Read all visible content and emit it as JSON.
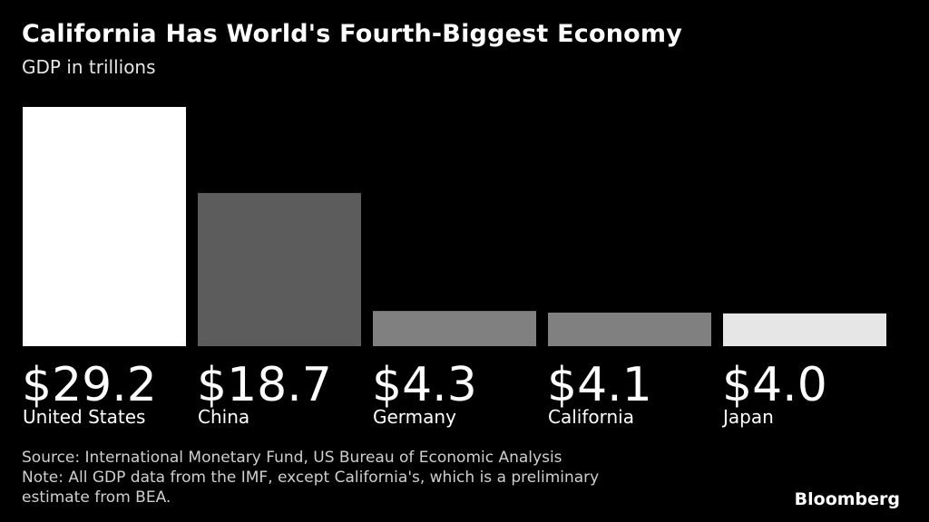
{
  "chart_data": {
    "type": "bar",
    "title": "California Has World's Fourth-Biggest Economy",
    "subtitle": "GDP in trillions",
    "categories": [
      "United States",
      "China",
      "Germany",
      "California",
      "Japan"
    ],
    "values": [
      29.2,
      18.7,
      4.3,
      4.1,
      4.0
    ],
    "value_labels": [
      "$29.2",
      "$18.7",
      "$4.3",
      "$4.1",
      "$4.0"
    ],
    "bar_colors": [
      "#ffffff",
      "#5c5c5c",
      "#808080",
      "#808080",
      "#e6e6e6"
    ],
    "ylim": [
      0,
      29.2
    ],
    "grid": false,
    "legend": "none"
  },
  "footnotes": {
    "source": "Source: International Monetary Fund, US Bureau of Economic Analysis",
    "note_line1": "Note: All GDP data from the IMF, except California's, which is a preliminary",
    "note_line2": "estimate from BEA."
  },
  "brand": "Bloomberg"
}
